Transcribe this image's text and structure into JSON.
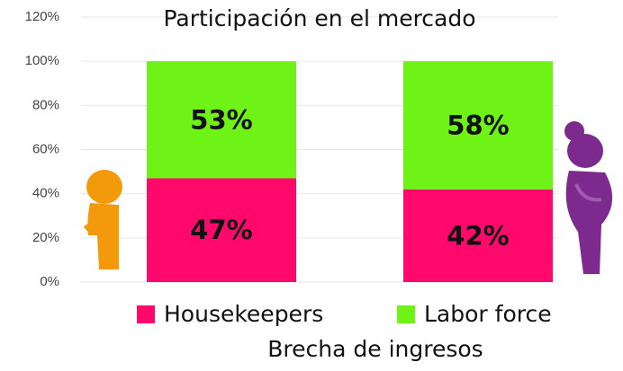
{
  "chart_data": {
    "type": "stacked_bar",
    "title": "Participación en el mercado",
    "x_label": "Brecha de ingresos",
    "categories": [
      null,
      null
    ],
    "series": [
      {
        "name": "Housekeepers",
        "color": "#ff0a6c",
        "values": [
          47,
          42
        ],
        "value_labels": [
          "47%",
          "42%"
        ]
      },
      {
        "name": "Labor force",
        "color": "#6ff316",
        "values": [
          53,
          58
        ],
        "value_labels": [
          "53%",
          "58%"
        ]
      }
    ],
    "ylim": [
      0,
      120
    ],
    "yticks": [
      {
        "value": 0,
        "label": "0%"
      },
      {
        "value": 20,
        "label": "20%"
      },
      {
        "value": 40,
        "label": "40%"
      },
      {
        "value": 60,
        "label": "60%"
      },
      {
        "value": 80,
        "label": "80%"
      },
      {
        "value": 100,
        "label": "100%"
      },
      {
        "value": 120,
        "label": "120%"
      }
    ],
    "grid": true,
    "legend": "bottom"
  }
}
